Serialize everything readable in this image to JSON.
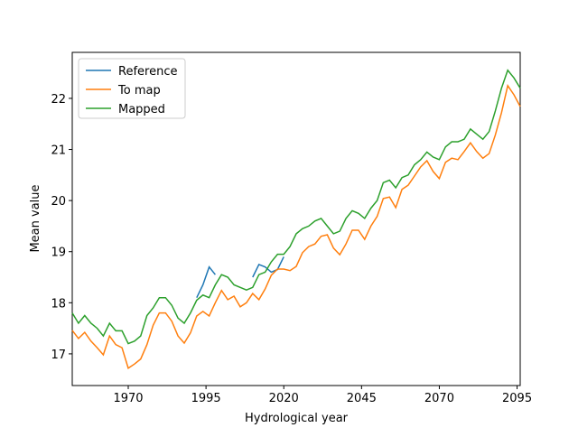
{
  "chart_data": {
    "type": "line",
    "x_label": "Hydrological year",
    "y_label": "Mean value",
    "x": [
      1952,
      1954,
      1956,
      1958,
      1960,
      1962,
      1964,
      1966,
      1968,
      1970,
      1972,
      1974,
      1976,
      1978,
      1980,
      1982,
      1984,
      1986,
      1988,
      1990,
      1992,
      1994,
      1996,
      1998,
      2000,
      2002,
      2004,
      2006,
      2008,
      2010,
      2012,
      2014,
      2016,
      2018,
      2020,
      2022,
      2024,
      2026,
      2028,
      2030,
      2032,
      2034,
      2036,
      2038,
      2040,
      2042,
      2044,
      2046,
      2048,
      2050,
      2052,
      2054,
      2056,
      2058,
      2060,
      2062,
      2064,
      2066,
      2068,
      2070,
      2072,
      2074,
      2076,
      2078,
      2080,
      2082,
      2084,
      2086,
      2088,
      2090,
      2092,
      2094,
      2096
    ],
    "series": [
      {
        "name": "Reference",
        "color": "#1f77b4",
        "values": [
          null,
          null,
          null,
          null,
          null,
          null,
          null,
          null,
          null,
          null,
          null,
          null,
          null,
          null,
          null,
          null,
          null,
          null,
          null,
          null,
          18.1,
          18.35,
          18.7,
          18.55,
          null,
          null,
          null,
          null,
          null,
          18.5,
          18.75,
          18.7,
          18.6,
          18.65,
          18.9,
          null,
          null,
          null,
          null,
          null,
          null,
          null,
          null,
          null,
          null,
          null,
          null,
          null,
          null,
          null,
          null,
          null,
          null,
          null,
          null,
          null,
          null,
          null,
          null,
          null,
          null,
          null,
          null,
          null,
          null,
          null,
          null,
          null,
          null,
          null,
          null,
          null,
          null
        ]
      },
      {
        "name": "To map",
        "color": "#ff7f0e",
        "values": [
          17.46,
          17.3,
          17.42,
          17.25,
          17.12,
          16.98,
          17.35,
          17.18,
          17.12,
          16.72,
          16.8,
          16.9,
          17.18,
          17.56,
          17.8,
          17.8,
          17.64,
          17.35,
          17.21,
          17.41,
          17.74,
          17.83,
          17.74,
          18.0,
          18.24,
          18.06,
          18.13,
          17.92,
          18.0,
          18.18,
          18.06,
          18.27,
          18.54,
          18.66,
          18.66,
          18.63,
          18.71,
          18.98,
          19.1,
          19.15,
          19.3,
          19.33,
          19.07,
          18.94,
          19.15,
          19.42,
          19.42,
          19.24,
          19.5,
          19.69,
          20.04,
          20.07,
          19.86,
          20.22,
          20.3,
          20.48,
          20.66,
          20.78,
          20.57,
          20.43,
          20.75,
          20.83,
          20.8,
          20.96,
          21.13,
          20.96,
          20.83,
          20.92,
          21.28,
          21.72,
          22.25,
          22.07,
          21.84
        ]
      },
      {
        "name": "Mapped",
        "color": "#2ca02c",
        "values": [
          17.8,
          17.6,
          17.75,
          17.6,
          17.5,
          17.35,
          17.6,
          17.45,
          17.45,
          17.2,
          17.25,
          17.35,
          17.75,
          17.9,
          18.1,
          18.1,
          17.95,
          17.7,
          17.6,
          17.8,
          18.05,
          18.15,
          18.1,
          18.35,
          18.55,
          18.5,
          18.35,
          18.3,
          18.25,
          18.3,
          18.55,
          18.6,
          18.8,
          18.95,
          18.95,
          19.1,
          19.35,
          19.45,
          19.5,
          19.6,
          19.65,
          19.5,
          19.35,
          19.4,
          19.65,
          19.8,
          19.75,
          19.65,
          19.85,
          20.0,
          20.35,
          20.4,
          20.25,
          20.45,
          20.5,
          20.7,
          20.8,
          20.95,
          20.85,
          20.8,
          21.05,
          21.15,
          21.15,
          21.2,
          21.4,
          21.3,
          21.2,
          21.35,
          21.75,
          22.2,
          22.55,
          22.4,
          22.2
        ]
      }
    ],
    "xlim": [
      1952,
      2096
    ],
    "xticks": [
      1970,
      1995,
      2020,
      2045,
      2070,
      2095
    ],
    "ylim": [
      16.38,
      22.9
    ],
    "yticks": [
      17,
      18,
      19,
      20,
      21,
      22
    ],
    "legend": "upper left"
  }
}
